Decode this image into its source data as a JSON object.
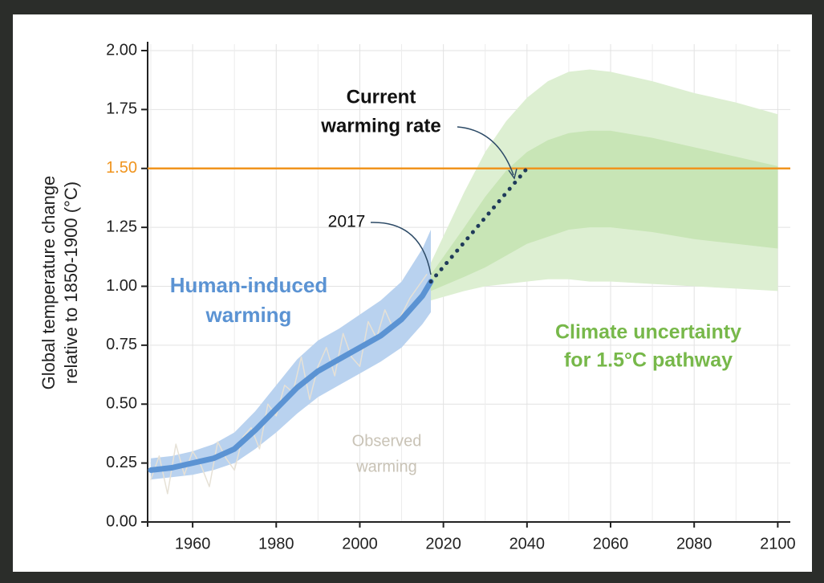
{
  "chart_data": {
    "type": "line",
    "y_label": [
      "Global temperature change",
      "relative to 1850-1900 (°C)"
    ],
    "xlim": [
      1950,
      2103
    ],
    "ylim": [
      0,
      2
    ],
    "xticks": [
      1960,
      1980,
      2000,
      2020,
      2040,
      2060,
      2080,
      2100
    ],
    "x_minor_ticks": [
      1950,
      1970,
      1990,
      2010,
      2030,
      2050,
      2070,
      2090
    ],
    "yticks": [
      {
        "value": 0,
        "label": "0.00"
      },
      {
        "value": 0.25,
        "label": "0.25"
      },
      {
        "value": 0.5,
        "label": "0.50"
      },
      {
        "value": 0.75,
        "label": "0.75"
      },
      {
        "value": 1,
        "label": "1.00"
      },
      {
        "value": 1.25,
        "label": "1.25"
      },
      {
        "value": 1.5,
        "label": "1.50"
      },
      {
        "value": 1.75,
        "label": "1.75"
      },
      {
        "value": 2,
        "label": "2.00"
      }
    ],
    "grid": true,
    "reference_line": {
      "value": 1.5,
      "color": "#f0941e"
    },
    "bands": [
      {
        "color": "#ddefd2",
        "x": [
          2017,
          2025,
          2030,
          2035,
          2040,
          2045,
          2050,
          2055,
          2060,
          2070,
          2080,
          2090,
          2100
        ],
        "upper": [
          1.1,
          1.4,
          1.57,
          1.7,
          1.8,
          1.87,
          1.91,
          1.92,
          1.91,
          1.87,
          1.82,
          1.78,
          1.73
        ],
        "lower": [
          0.94,
          0.98,
          1.0,
          1.01,
          1.02,
          1.03,
          1.03,
          1.02,
          1.02,
          1.01,
          1.0,
          0.99,
          0.98
        ]
      },
      {
        "color": "#c8e5b6",
        "x": [
          2017,
          2025,
          2030,
          2035,
          2040,
          2045,
          2050,
          2055,
          2060,
          2070,
          2080,
          2090,
          2100
        ],
        "upper": [
          1.05,
          1.25,
          1.38,
          1.49,
          1.57,
          1.62,
          1.65,
          1.66,
          1.66,
          1.63,
          1.59,
          1.55,
          1.51
        ],
        "lower": [
          0.98,
          1.04,
          1.08,
          1.13,
          1.18,
          1.21,
          1.24,
          1.25,
          1.25,
          1.23,
          1.2,
          1.18,
          1.16
        ]
      },
      {
        "color": "#b9d2ef",
        "x": [
          1950,
          1955,
          1960,
          1965,
          1970,
          1975,
          1980,
          1985,
          1990,
          1995,
          2000,
          2005,
          2010,
          2015,
          2017
        ],
        "upper": [
          0.27,
          0.28,
          0.3,
          0.33,
          0.38,
          0.47,
          0.58,
          0.69,
          0.77,
          0.82,
          0.88,
          0.94,
          1.02,
          1.16,
          1.24
        ],
        "lower": [
          0.18,
          0.19,
          0.2,
          0.22,
          0.25,
          0.31,
          0.38,
          0.46,
          0.53,
          0.58,
          0.63,
          0.68,
          0.74,
          0.84,
          0.89
        ]
      }
    ],
    "series": [
      {
        "color": "#e6e1d6",
        "style": "solid",
        "width": 1.5,
        "x": [
          1950,
          1952,
          1954,
          1956,
          1958,
          1960,
          1962,
          1964,
          1966,
          1968,
          1970,
          1972,
          1974,
          1976,
          1978,
          1980,
          1982,
          1984,
          1986,
          1988,
          1990,
          1992,
          1994,
          1996,
          1998,
          2000,
          2002,
          2004,
          2006,
          2008,
          2010,
          2012,
          2014,
          2016
        ],
        "values": [
          0.18,
          0.28,
          0.12,
          0.33,
          0.2,
          0.3,
          0.24,
          0.15,
          0.34,
          0.27,
          0.22,
          0.36,
          0.4,
          0.31,
          0.5,
          0.45,
          0.58,
          0.55,
          0.7,
          0.52,
          0.66,
          0.74,
          0.62,
          0.8,
          0.7,
          0.66,
          0.85,
          0.78,
          0.9,
          0.82,
          0.88,
          0.95,
          1.0,
          1.05
        ]
      },
      {
        "color": "#5b93d3",
        "style": "solid",
        "width": 7,
        "x": [
          1950,
          1955,
          1960,
          1965,
          1970,
          1975,
          1980,
          1985,
          1990,
          1995,
          2000,
          2005,
          2010,
          2015,
          2017
        ],
        "values": [
          0.22,
          0.23,
          0.25,
          0.27,
          0.31,
          0.39,
          0.48,
          0.57,
          0.64,
          0.69,
          0.74,
          0.79,
          0.86,
          0.96,
          1.02
        ]
      },
      {
        "color": "#1f3a5a",
        "style": "dotted",
        "width": 5,
        "x": [
          2017,
          2040
        ],
        "values": [
          1.02,
          1.5
        ]
      }
    ],
    "annotations": [
      {
        "lines": [
          "Current",
          "warming rate"
        ],
        "color": "#111111",
        "bold": true
      },
      {
        "lines": [
          "2017"
        ],
        "color": "#111111",
        "bold": false
      },
      {
        "lines": [
          "Human-induced",
          "warming"
        ],
        "color": "#5b93d3",
        "bold": true
      },
      {
        "lines": [
          "Observed",
          "warming"
        ],
        "color": "#c9c3b6",
        "bold": false
      },
      {
        "lines": [
          "Climate uncertainty",
          "for 1.5°C pathway"
        ],
        "color": "#77b84a",
        "bold": true
      }
    ]
  }
}
